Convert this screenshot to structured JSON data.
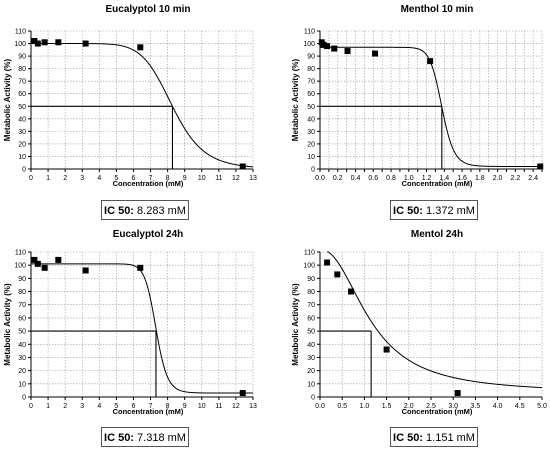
{
  "chart_data": [
    {
      "type": "scatter",
      "title": "Eucalyptol 10 min",
      "xlabel": "Concentration (mM)",
      "ylabel": "Metabolic Activity (%)",
      "xlim": [
        0,
        13
      ],
      "ylim": [
        0,
        110
      ],
      "xticks": [
        0,
        1,
        2,
        3,
        4,
        5,
        6,
        7,
        8,
        9,
        10,
        11,
        12,
        13
      ],
      "xtick_labels": [
        "0",
        "1",
        "2",
        "3",
        "4",
        "5",
        "6",
        "7",
        "8",
        "9",
        "10",
        "11",
        "12",
        "13"
      ],
      "yticks": [
        0,
        10,
        20,
        30,
        40,
        50,
        60,
        70,
        80,
        90,
        100,
        110
      ],
      "grid": true,
      "points": {
        "x": [
          0.2,
          0.4,
          0.8,
          1.6,
          3.2,
          6.4,
          12.4
        ],
        "y": [
          102,
          100,
          101,
          101,
          100,
          97,
          2
        ]
      },
      "fit": {
        "model": "sigmoid",
        "top": 100,
        "bottom": 0,
        "ec50": 8.283,
        "hill": 9,
        "xmax": 13
      },
      "ic50_line": {
        "x": 8.283,
        "y": 50
      },
      "ic50_label": "IC 50:",
      "ic50_value": "8.283 mM"
    },
    {
      "type": "scatter",
      "title": "Menthol 10 min",
      "xlabel": "Concentration (mM)",
      "ylabel": "Metabolic Activity (%)",
      "xlim": [
        0,
        2.5
      ],
      "ylim": [
        0,
        110
      ],
      "xticks": [
        0,
        0.1,
        0.2,
        0.3,
        0.4,
        0.5,
        0.6,
        0.7,
        0.8,
        0.9,
        1.0,
        1.1,
        1.2,
        1.3,
        1.4,
        1.5,
        1.6,
        1.7,
        1.8,
        1.9,
        2.0,
        2.1,
        2.2,
        2.3,
        2.4,
        2.5
      ],
      "xtick_labels": [
        "0.0",
        "",
        "0.2",
        "",
        "0.4",
        "",
        "0.6",
        "",
        "0.8",
        "",
        "1.0",
        "",
        "1.2",
        "",
        "1.4",
        "",
        "1.6",
        "",
        "1.8",
        "",
        "2.0",
        "",
        "2.2",
        "",
        "2.4",
        ""
      ],
      "yticks": [
        0,
        10,
        20,
        30,
        40,
        50,
        60,
        70,
        80,
        90,
        100,
        110
      ],
      "grid": true,
      "points": {
        "x": [
          0.02,
          0.04,
          0.08,
          0.16,
          0.31,
          0.62,
          1.24,
          2.48
        ],
        "y": [
          101,
          99,
          98,
          96,
          94,
          92,
          86,
          2
        ]
      },
      "fit": {
        "model": "sigmoid",
        "top": 97,
        "bottom": 2,
        "ec50": 1.372,
        "hill": 20,
        "xmax": 2.5
      },
      "ic50_line": {
        "x": 1.372,
        "y": 50
      },
      "ic50_label": "IC 50:",
      "ic50_value": "1.372 mM"
    },
    {
      "type": "scatter",
      "title": "Eucalyptol 24h",
      "xlabel": "Concentration (mM)",
      "ylabel": "Metabolic Activity (%)",
      "xlim": [
        0,
        13
      ],
      "ylim": [
        0,
        110
      ],
      "xticks": [
        0,
        1,
        2,
        3,
        4,
        5,
        6,
        7,
        8,
        9,
        10,
        11,
        12,
        13
      ],
      "xtick_labels": [
        "0",
        "1",
        "2",
        "3",
        "4",
        "5",
        "6",
        "7",
        "8",
        "9",
        "10",
        "11",
        "12",
        "13"
      ],
      "yticks": [
        0,
        10,
        20,
        30,
        40,
        50,
        60,
        70,
        80,
        90,
        100,
        110
      ],
      "grid": true,
      "points": {
        "x": [
          0.2,
          0.4,
          0.8,
          1.6,
          3.2,
          6.4,
          12.4
        ],
        "y": [
          104,
          101,
          98,
          104,
          96,
          98,
          3
        ]
      },
      "fit": {
        "model": "sigmoid",
        "top": 101,
        "bottom": 3,
        "ec50": 7.318,
        "hill": 22,
        "xmax": 13
      },
      "ic50_line": {
        "x": 7.318,
        "y": 50
      },
      "ic50_label": "IC 50:",
      "ic50_value": "7.318 mM"
    },
    {
      "type": "scatter",
      "title": "Mentol 24h",
      "xlabel": "Concentration (mM)",
      "ylabel": "Metabolic Activity (%)",
      "xlim": [
        0,
        5.0
      ],
      "ylim": [
        0,
        110
      ],
      "xticks": [
        0,
        0.5,
        1.0,
        1.5,
        2.0,
        2.5,
        3.0,
        3.5,
        4.0,
        4.5,
        5.0
      ],
      "xtick_labels": [
        "0.0",
        "0.5",
        "1.0",
        "1.5",
        "2.0",
        "2.5",
        "3.0",
        "3.5",
        "4.0",
        "4.5",
        "5.0"
      ],
      "yticks": [
        0,
        10,
        20,
        30,
        40,
        50,
        60,
        70,
        80,
        90,
        100,
        110
      ],
      "grid": true,
      "points": {
        "x": [
          0.16,
          0.39,
          0.7,
          1.5,
          3.1
        ],
        "y": [
          102,
          93,
          80,
          36,
          3
        ]
      },
      "fit": {
        "model": "sigmoid",
        "top": 112,
        "bottom": 3,
        "ec50": 1.151,
        "hill": 2.2,
        "xmax": 5.0,
        "xmin": 0.16
      },
      "ic50_line": {
        "x": 1.151,
        "y": 50
      },
      "ic50_label": "IC 50:",
      "ic50_value": "1.151 mM"
    }
  ]
}
